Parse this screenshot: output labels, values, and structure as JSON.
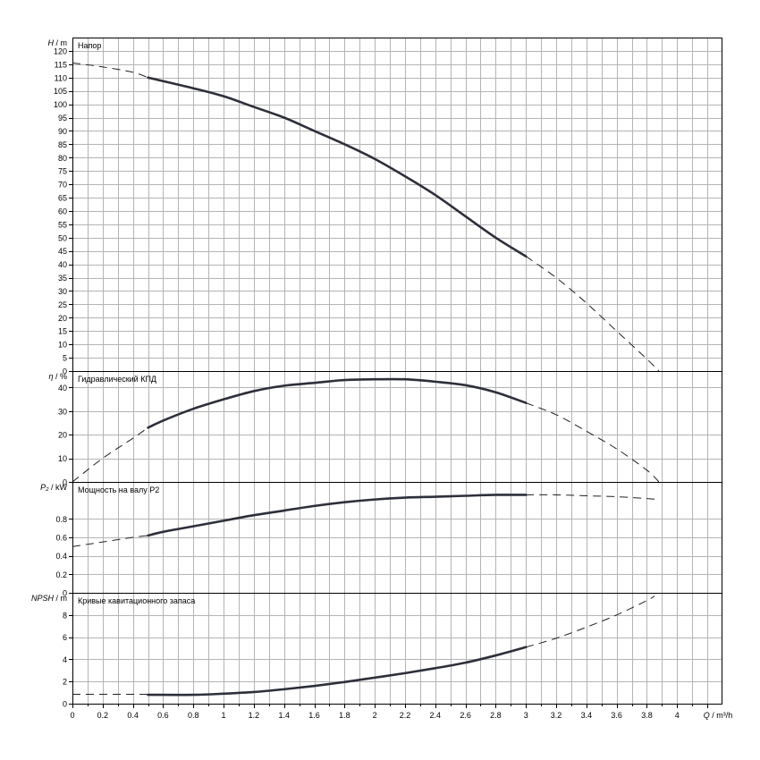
{
  "chart_data": [
    {
      "type": "line",
      "title": "Напор",
      "ylabel_symbol": "H",
      "ylabel_unit": "m",
      "ylim": [
        0,
        125
      ],
      "yticks": [
        0,
        5,
        10,
        15,
        20,
        25,
        30,
        35,
        40,
        45,
        50,
        55,
        60,
        65,
        70,
        75,
        80,
        85,
        90,
        95,
        100,
        105,
        110,
        115,
        120
      ],
      "series": [
        {
          "style": "solid",
          "x": [
            0.5,
            0.8,
            1.0,
            1.2,
            1.4,
            1.6,
            1.8,
            2.0,
            2.2,
            2.4,
            2.6,
            2.8,
            3.0
          ],
          "y": [
            110,
            106,
            103,
            99,
            95,
            90,
            85,
            79.5,
            73,
            66,
            58,
            50,
            43
          ]
        },
        {
          "style": "dashed",
          "x": [
            0,
            0.2,
            0.4,
            0.5
          ],
          "y": [
            115.5,
            114,
            112,
            110
          ]
        },
        {
          "style": "dashed",
          "x": [
            3.0,
            3.2,
            3.4,
            3.6,
            3.8,
            3.88
          ],
          "y": [
            43,
            35,
            25.5,
            15,
            4.5,
            0
          ]
        }
      ]
    },
    {
      "type": "line",
      "title": "Гидравлический КПД",
      "ylabel_symbol": "η",
      "ylabel_unit": "%",
      "ylim": [
        0,
        47
      ],
      "yticks": [
        0,
        10,
        20,
        30,
        40
      ],
      "series": [
        {
          "style": "solid",
          "x": [
            0.5,
            0.6,
            0.8,
            1.0,
            1.2,
            1.4,
            1.6,
            1.8,
            2.0,
            2.2,
            2.4,
            2.6,
            2.8,
            3.0
          ],
          "y": [
            23,
            26,
            31,
            35,
            38.5,
            40.8,
            42,
            43.2,
            43.5,
            43.5,
            42.5,
            41,
            38,
            33.5
          ]
        },
        {
          "style": "dashed",
          "x": [
            0,
            0.2,
            0.4,
            0.5
          ],
          "y": [
            0,
            10,
            18.5,
            23
          ]
        },
        {
          "style": "dashed",
          "x": [
            3.0,
            3.2,
            3.4,
            3.6,
            3.8,
            3.88
          ],
          "y": [
            33.5,
            28.5,
            21.5,
            14,
            5,
            0
          ]
        }
      ]
    },
    {
      "type": "line",
      "title": "Мощность на валу P2",
      "ylabel_symbol": "P₂",
      "ylabel_unit": "kW",
      "ylim": [
        0,
        1.2
      ],
      "yticks": [
        0,
        0.2,
        0.4,
        0.6,
        0.8
      ],
      "series": [
        {
          "style": "solid",
          "x": [
            0.5,
            0.6,
            0.8,
            1.0,
            1.2,
            1.4,
            1.6,
            1.8,
            2.0,
            2.2,
            2.4,
            2.6,
            2.8,
            3.0
          ],
          "y": [
            0.62,
            0.66,
            0.72,
            0.78,
            0.84,
            0.89,
            0.94,
            0.98,
            1.01,
            1.03,
            1.04,
            1.05,
            1.06,
            1.06
          ]
        },
        {
          "style": "dashed",
          "x": [
            0,
            0.2,
            0.4,
            0.5
          ],
          "y": [
            0.5,
            0.55,
            0.6,
            0.62
          ]
        },
        {
          "style": "dashed",
          "x": [
            3.0,
            3.2,
            3.4,
            3.6,
            3.8,
            3.88
          ],
          "y": [
            1.06,
            1.06,
            1.05,
            1.04,
            1.02,
            1.01
          ]
        }
      ]
    },
    {
      "type": "line",
      "title": "Кривые кавитационного запаса",
      "ylabel_symbol": "NPSH",
      "ylabel_unit": "m",
      "ylim": [
        0,
        10
      ],
      "yticks": [
        0,
        2,
        4,
        6,
        8
      ],
      "series": [
        {
          "style": "dashed",
          "x": [
            0,
            0.5
          ],
          "y": [
            0.85,
            0.85
          ]
        },
        {
          "style": "solid",
          "x": [
            0.5,
            0.8,
            1.0,
            1.2,
            1.4,
            1.6,
            1.8,
            2.0,
            2.2,
            2.4,
            2.6,
            2.8,
            3.0
          ],
          "y": [
            0.8,
            0.8,
            0.9,
            1.05,
            1.3,
            1.6,
            1.95,
            2.35,
            2.75,
            3.2,
            3.7,
            4.35,
            5.1
          ]
        },
        {
          "style": "dashed",
          "x": [
            3.0,
            3.2,
            3.4,
            3.6,
            3.8,
            3.85
          ],
          "y": [
            5.1,
            5.9,
            6.9,
            8.0,
            9.3,
            9.7
          ]
        }
      ]
    }
  ],
  "x_axis": {
    "label_symbol": "Q",
    "label_unit": "m³/h",
    "xlim": [
      0,
      4.3
    ],
    "ticks": [
      "0",
      "0.2",
      "0.4",
      "0.6",
      "0.8",
      "1",
      "1.2",
      "1.4",
      "1.6",
      "1.8",
      "2",
      "2.2",
      "2.4",
      "2.6",
      "2.8",
      "3",
      "3.2",
      "3.4",
      "3.6",
      "3.8",
      "4"
    ]
  },
  "grid": true
}
